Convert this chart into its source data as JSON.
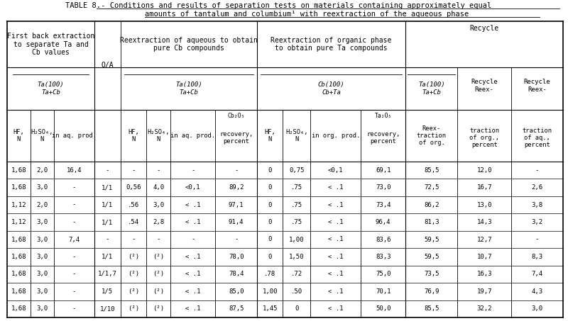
{
  "title_bold": "TABLE 8.",
  "title_line1": " - Conditions and results of separation tests on materials containing approximately equal",
  "title_line2": "amounts of tantalum and columbium¹ with reextraction of the aqueous phase",
  "bg": "#ffffff",
  "fg": "#000000",
  "data_rows": [
    [
      "1,68",
      "2,0",
      "16,4",
      "-",
      "-",
      "-",
      "-",
      "-",
      "0",
      "0,75",
      "<0,1",
      "69,1",
      "85,5",
      "12,0",
      "-"
    ],
    [
      "1,68",
      "3,0",
      "-",
      "1/1",
      "0,56",
      "4,0",
      "<0,1",
      "89,2",
      "0",
      ".75",
      "< .1",
      "73,0",
      "72,5",
      "16,7",
      "2,6"
    ],
    [
      "1,12",
      "2,0",
      "-",
      "1/1",
      ".56",
      "3,0",
      "< .1",
      "97,1",
      "0",
      ".75",
      "< .1",
      "73,4",
      "86,2",
      "13,0",
      "3,8"
    ],
    [
      "1,12",
      "3,0",
      "-",
      "1/1",
      ".54",
      "2,8",
      "< .1",
      "91,4",
      "0",
      ".75",
      "< .1",
      "96,4",
      "81,3",
      "14,3",
      "3,2"
    ],
    [
      "1,68",
      "3,0",
      "7,4",
      "-",
      "-",
      "-",
      "-",
      "-",
      "0",
      "1,00",
      "< .1",
      "83,6",
      "59,5",
      "12,7",
      "-"
    ],
    [
      "1,68",
      "3,0",
      "-",
      "1/1",
      "(²)",
      "(²)",
      "< .1",
      "78,0",
      "0",
      "1,50",
      "< .1",
      "83,3",
      "59,5",
      "10,7",
      "8,3"
    ],
    [
      "1,68",
      "3,0",
      "-",
      "1/1,7",
      "(²)",
      "(²)",
      "< .1",
      "78,4",
      ".78",
      ".72",
      "< .1",
      "75,0",
      "73,5",
      "16,3",
      "7,4"
    ],
    [
      "1,68",
      "3,0",
      "-",
      "1/5",
      "(²)",
      "(²)",
      "< .1",
      "85,0",
      "1,00",
      ".50",
      "< .1",
      "70,1",
      "76,9",
      "19,7",
      "4,3"
    ],
    [
      "1,68",
      "3,0",
      "-",
      "1/10",
      "(²)",
      "(²)",
      "< .1",
      "87,5",
      "1,45",
      "0",
      "< .1",
      "50,0",
      "85,5",
      "32,2",
      "3,0"
    ]
  ]
}
